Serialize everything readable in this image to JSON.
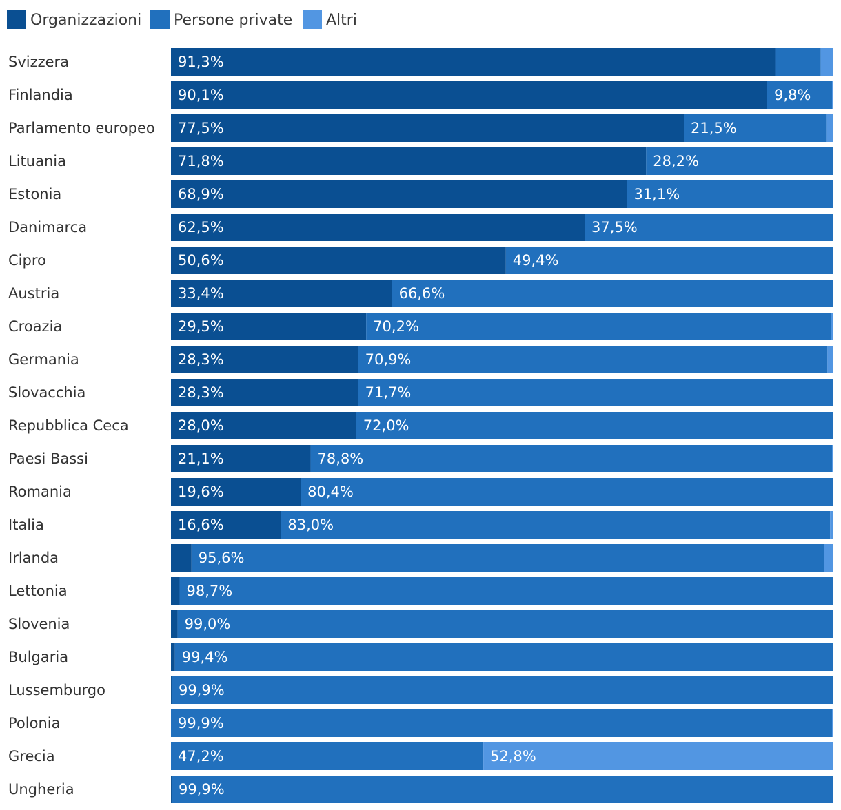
{
  "chart_data": {
    "type": "bar",
    "orientation": "horizontal",
    "stacked": true,
    "normalized_to": 100,
    "unit": "%",
    "legend_position": "top-left",
    "grid": false,
    "xlim": [
      0,
      100
    ],
    "colors": {
      "Organizzazioni": "#0a4f92",
      "Persone private": "#2170bd",
      "Altri": "#5296e2"
    },
    "categories": [
      "Svizzera",
      "Finlandia",
      "Parlamento europeo",
      "Lituania",
      "Estonia",
      "Danimarca",
      "Cipro",
      "Austria",
      "Croazia",
      "Germania",
      "Slovacchia",
      "Repubblica Ceca",
      "Paesi Bassi",
      "Romania",
      "Italia",
      "Irlanda",
      "Lettonia",
      "Slovenia",
      "Bulgaria",
      "Lussemburgo",
      "Polonia",
      "Grecia",
      "Ungheria"
    ],
    "series": [
      {
        "name": "Organizzazioni",
        "values": [
          91.3,
          90.1,
          77.5,
          71.8,
          68.9,
          62.5,
          50.6,
          33.4,
          29.5,
          28.3,
          28.3,
          28.0,
          21.1,
          19.6,
          16.6,
          3.1,
          1.3,
          1.0,
          0.6,
          0.1,
          0.0,
          0.0,
          0.1
        ],
        "labels": [
          "91,3%",
          "90,1%",
          "77,5%",
          "71,8%",
          "68,9%",
          "62,5%",
          "50,6%",
          "33,4%",
          "29,5%",
          "28,3%",
          "28,3%",
          "28,0%",
          "21,1%",
          "19,6%",
          "16,6%",
          "",
          "",
          "",
          "",
          "",
          "",
          "",
          ""
        ]
      },
      {
        "name": "Persone private",
        "values": [
          6.9,
          9.8,
          21.5,
          28.2,
          31.1,
          37.5,
          49.4,
          66.6,
          70.2,
          70.9,
          71.7,
          72.0,
          78.8,
          80.4,
          83.0,
          95.6,
          98.7,
          99.0,
          99.4,
          99.9,
          99.9,
          47.2,
          99.9
        ],
        "labels": [
          "",
          "9,8%",
          "21,5%",
          "28,2%",
          "31,1%",
          "37,5%",
          "49,4%",
          "66,6%",
          "70,2%",
          "70,9%",
          "71,7%",
          "72,0%",
          "78,8%",
          "80,4%",
          "83,0%",
          "95,6%",
          "98,7%",
          "99,0%",
          "99,4%",
          "99,9%",
          "99,9%",
          "47,2%",
          "99,9%"
        ]
      },
      {
        "name": "Altri",
        "values": [
          1.8,
          0.1,
          1.0,
          0.0,
          0.0,
          0.0,
          0.0,
          0.0,
          0.3,
          0.8,
          0.0,
          0.0,
          0.1,
          0.0,
          0.4,
          1.3,
          0.0,
          0.0,
          0.0,
          0.0,
          0.1,
          52.8,
          0.0
        ],
        "labels": [
          "",
          "",
          "",
          "",
          "",
          "",
          "",
          "",
          "",
          "",
          "",
          "",
          "",
          "",
          "",
          "",
          "",
          "",
          "",
          "",
          "",
          "52,8%",
          ""
        ]
      }
    ]
  }
}
